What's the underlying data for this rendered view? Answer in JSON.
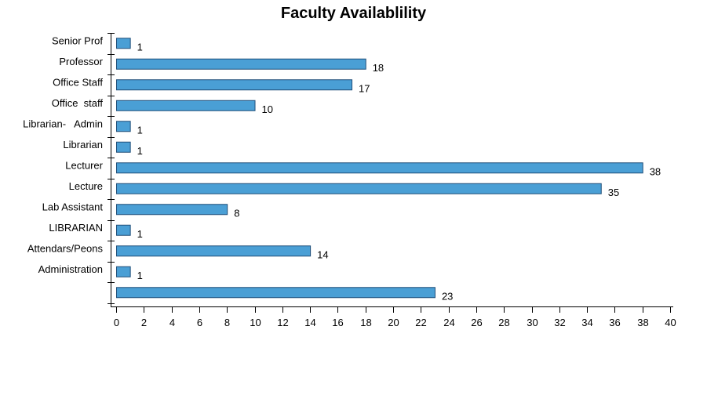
{
  "chart_data": {
    "type": "bar",
    "orientation": "horizontal",
    "title": "Faculty Availablility",
    "categories": [
      "Senior Prof",
      "Professor",
      "Office Staff",
      "Office  staff",
      "Librarian-   Admin",
      "Librarian",
      "Lecturer",
      "Lecture",
      "Lab Assistant",
      "LIBRARIAN",
      "Attendars/Peons",
      "Administration",
      ""
    ],
    "values": [
      1,
      18,
      17,
      10,
      1,
      1,
      38,
      35,
      8,
      1,
      14,
      1,
      23
    ],
    "x_ticks": [
      "0",
      "2",
      "4",
      "6",
      "8",
      "10",
      "12",
      "14",
      "16",
      "18",
      "20",
      "22",
      "24",
      "26",
      "28",
      "30",
      "32",
      "34",
      "36",
      "38",
      "40"
    ],
    "xlim": [
      0,
      40
    ],
    "xlabel": "",
    "ylabel": "",
    "grid": false,
    "legend": "none",
    "bar_color": "#4a9fd5",
    "bar_edge_color": "#1f4e79"
  }
}
